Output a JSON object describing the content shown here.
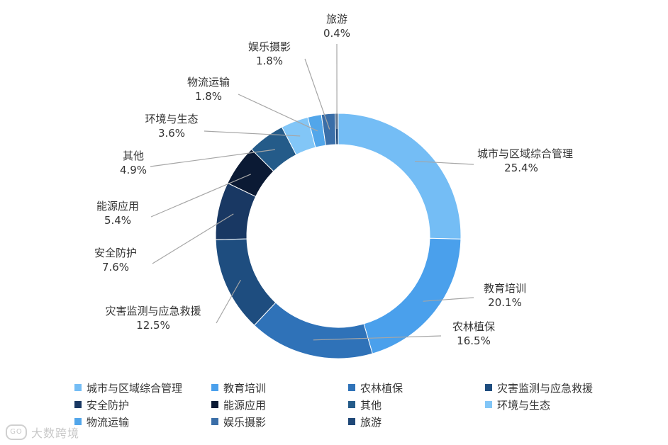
{
  "chart_data": {
    "type": "pie",
    "donut": true,
    "title": "",
    "legend_position": "bottom",
    "slices": [
      {
        "name": "城市与区域综合管理",
        "value": 25.4,
        "label": "25.4%",
        "color": "#74bdf5"
      },
      {
        "name": "教育培训",
        "value": 20.1,
        "label": "20.1%",
        "color": "#4aa0ec"
      },
      {
        "name": "农林植保",
        "value": 16.5,
        "label": "16.5%",
        "color": "#2f72b8"
      },
      {
        "name": "灾害监测与应急救援",
        "value": 12.5,
        "label": "12.5%",
        "color": "#1e4d7f"
      },
      {
        "name": "安全防护",
        "value": 7.6,
        "label": "7.6%",
        "color": "#193863"
      },
      {
        "name": "能源应用",
        "value": 5.4,
        "label": "5.4%",
        "color": "#0b1a34"
      },
      {
        "name": "其他",
        "value": 4.9,
        "label": "4.9%",
        "color": "#245b89"
      },
      {
        "name": "环境与生态",
        "value": 3.6,
        "label": "3.6%",
        "color": "#82c6f7"
      },
      {
        "name": "物流运输",
        "value": 1.8,
        "label": "1.8%",
        "color": "#52a6ea"
      },
      {
        "name": "娱乐摄影",
        "value": 1.8,
        "label": "1.8%",
        "color": "#3a6ea8"
      },
      {
        "name": "旅游",
        "value": 0.4,
        "label": "0.4%",
        "color": "#1f4777"
      }
    ]
  },
  "watermark": {
    "text": "大数跨境",
    "logo": "GO"
  }
}
